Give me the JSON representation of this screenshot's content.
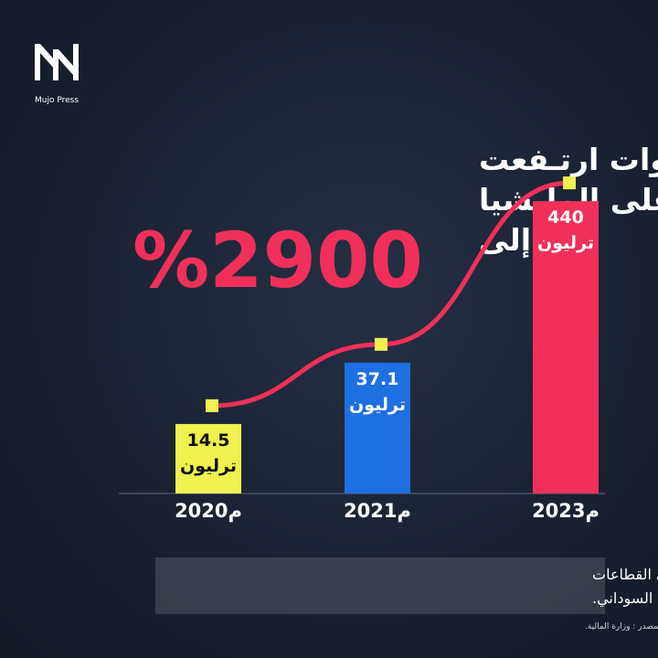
{
  "brand": "Mujo Press",
  "chart_data": {
    "type": "bar",
    "title_lines": [
      "في ثلاث سنوات ارتـفعت",
      "نسبة الصرف على المليشيا",
      "إلى"
    ],
    "highlight": "%2900",
    "categories": [
      "2020م",
      "2021م",
      "2023م"
    ],
    "values": [
      14.5,
      37.1,
      440
    ],
    "unit_label": "ترليون",
    "colors": [
      "#f0f050",
      "#1e6fe0",
      "#f0305a"
    ],
    "trend_color": "#f0305a",
    "marker_color": "#f0f050",
    "log_scale": true,
    "ylim": [
      5,
      500
    ]
  },
  "footer": {
    "lines": [
      "يتم دفع هذه الاموال من جيب المواطن خصما على القطاعات",
      "ذات الأولوية في حياة الشعب السوداني."
    ],
    "source": "- المصدر : وزارة المالية."
  }
}
